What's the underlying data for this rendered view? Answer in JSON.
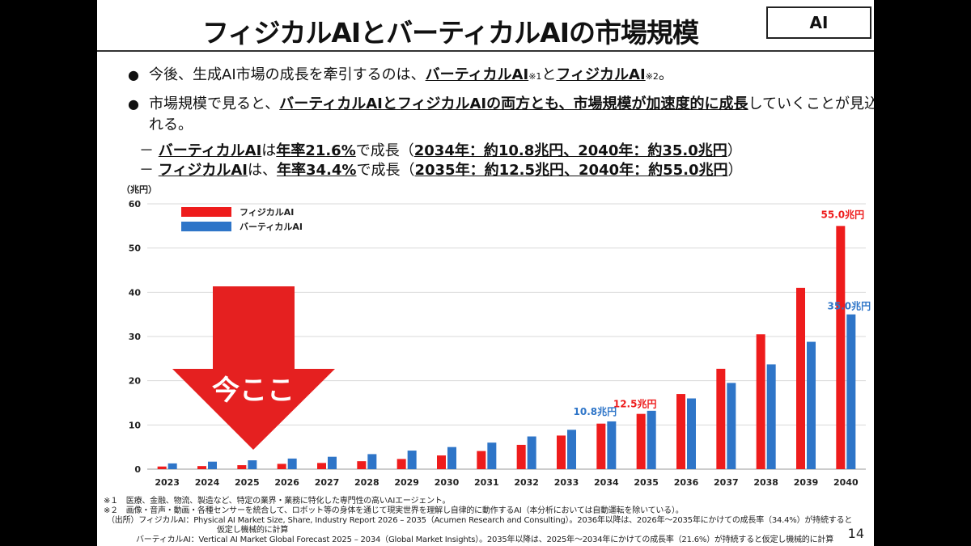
{
  "title": "フィジカルAIとバーティカルAIの市場規模",
  "tag": "AI",
  "bullets": {
    "b1_pre": "今後、生成AI市場の成長を牽引するのは、",
    "b1_v": "バーティカルAI",
    "b1_n1": "※1",
    "b1_to": "と",
    "b1_p": "フィジカルAI",
    "b1_n2": "※2",
    "b1_end": "。",
    "b2_pre": "市場規模で見ると、",
    "b2_bold": "バーティカルAIとフィジカルAIの両方とも、市場規模が加速度的に成長",
    "b2_post": "していくことが見込ま",
    "b2_line2": "れる。"
  },
  "sub": {
    "dash": "－",
    "s1_name": "バーティカルAI",
    "s1_mid": "は",
    "s1_rate": "年率21.6%",
    "s1_grow": "で成長（",
    "s1_detail": "2034年：約10.8兆円、2040年：約35.0兆円",
    "s1_end": "）",
    "s2_name": "フィジカルAI",
    "s2_mid": "は、",
    "s2_rate": "年率34.4%",
    "s2_grow": "で成長（",
    "s2_detail": "2035年：約12.5兆円、2040年：約55.0兆円",
    "s2_end": "）"
  },
  "arrow_text": "今ここ",
  "colors": {
    "physical": "#ee1c1c",
    "vertical": "#2e75c8",
    "arrow": "#e52020"
  },
  "chart_data": {
    "type": "bar",
    "unit_label": "（兆円）",
    "categories": [
      "2023",
      "2024",
      "2025",
      "2026",
      "2027",
      "2028",
      "2029",
      "2030",
      "2031",
      "2032",
      "2033",
      "2034",
      "2035",
      "2036",
      "2037",
      "2038",
      "2039",
      "2040"
    ],
    "series": [
      {
        "name": "フィジカルAI",
        "color": "#ee1c1c",
        "values": [
          0.6,
          0.7,
          0.9,
          1.2,
          1.4,
          1.8,
          2.3,
          3.1,
          4.1,
          5.5,
          7.6,
          10.3,
          12.5,
          17.0,
          22.7,
          30.5,
          41.0,
          55.0
        ]
      },
      {
        "name": "バーティカルAI",
        "color": "#2e75c8",
        "values": [
          1.3,
          1.7,
          2.0,
          2.4,
          2.8,
          3.4,
          4.2,
          5.0,
          6.0,
          7.4,
          8.9,
          10.8,
          13.2,
          16.0,
          19.5,
          23.7,
          28.8,
          35.0
        ]
      }
    ],
    "yticks": [
      0,
      10,
      20,
      30,
      40,
      50,
      60
    ],
    "ylim": [
      0,
      60
    ],
    "grid": true,
    "legend": "top-left",
    "annotations": [
      {
        "series": 0,
        "category": "2035",
        "text": "12.5兆円"
      },
      {
        "series": 1,
        "category": "2034",
        "text": "10.8兆円"
      },
      {
        "series": 0,
        "category": "2040",
        "text": "55.0兆円"
      },
      {
        "series": 1,
        "category": "2040",
        "text": "35.0兆円"
      }
    ]
  },
  "footnotes": {
    "n1": "※１　医療、金融、物流、製造など、特定の業界・業務に特化した専門性の高いAIエージェント。",
    "n2": "※２　画像・音声・動画・各種センサーを統合して、ロボット等の身体を通じて現実世界を理解し自律的に動作するAI（本分析においては自動運転を除いている）。",
    "src1": "（出所）フィジカルAI：Physical AI Market Size, Share, Industry Report 2026 – 2035（Acumen Research and Consulting）。2036年以降は、2026年～2035年にかけての成長率（34.4%）が持続すると",
    "src1b": "仮定し機械的に計算",
    "src2": "バーティカルAI：Vertical AI Market Global Forecast 2025 – 2034（Global Market Insights）。2035年以降は、2025年～2034年にかけての成長率（21.6%）が持続すると仮定し機械的に計算"
  },
  "page_number": "14"
}
